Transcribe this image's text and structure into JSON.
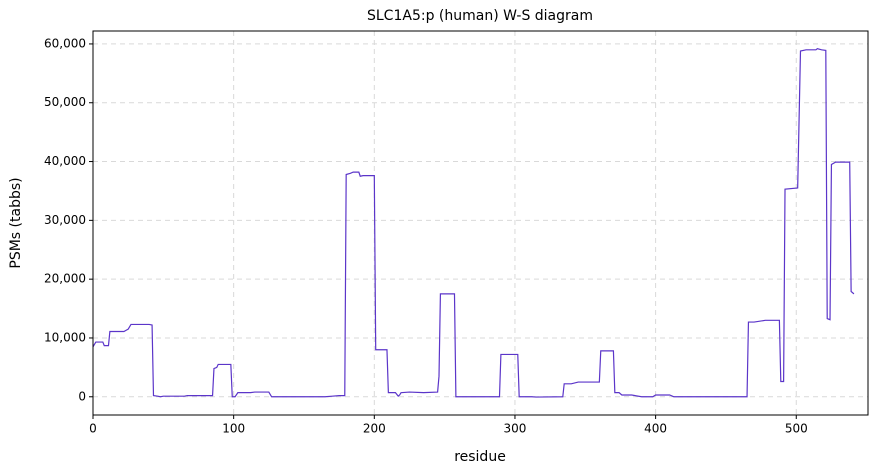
{
  "chart_data": {
    "type": "line",
    "title": "SLC1A5:p (human) W-S diagram",
    "x_label": "residue",
    "y_label": "PSMs (tabbs)",
    "x": [
      0,
      2,
      7,
      8,
      11,
      12,
      22,
      25,
      27,
      40,
      42,
      43,
      46,
      48,
      50,
      65,
      67,
      85,
      86,
      88,
      89,
      98,
      99,
      101,
      103,
      112,
      115,
      125,
      127,
      165,
      170,
      175,
      179,
      180,
      183,
      185,
      189,
      190,
      192,
      200,
      201,
      209,
      210,
      215,
      217,
      218,
      219,
      225,
      235,
      245,
      246,
      247,
      257,
      258,
      289,
      290,
      302,
      303,
      312,
      315,
      334,
      335,
      340,
      345,
      360,
      361,
      370,
      371,
      374,
      376,
      383,
      390,
      398,
      400,
      410,
      413,
      465,
      466,
      470,
      478,
      488,
      489,
      491,
      492,
      501,
      503,
      507,
      514,
      515,
      518,
      521,
      522,
      524,
      525,
      528,
      538,
      539,
      541
    ],
    "series": [
      {
        "name": "SLC1A5:p (human)",
        "color": "#5b35c9",
        "values": [
          8500,
          9300,
          9300,
          8700,
          8700,
          11100,
          11100,
          11500,
          12300,
          12300,
          12200,
          200,
          100,
          0,
          100,
          100,
          200,
          200,
          4800,
          5000,
          5500,
          5500,
          0,
          0,
          700,
          700,
          800,
          800,
          0,
          0,
          100,
          200,
          200,
          37800,
          38000,
          38200,
          38200,
          37500,
          37600,
          37600,
          8000,
          8000,
          700,
          700,
          100,
          300,
          700,
          800,
          700,
          800,
          3500,
          17500,
          17500,
          0,
          0,
          7200,
          7200,
          0,
          0,
          -50,
          0,
          2200,
          2200,
          2500,
          2500,
          7800,
          7800,
          700,
          700,
          300,
          300,
          0,
          0,
          300,
          300,
          0,
          0,
          12700,
          12700,
          13000,
          13000,
          2600,
          2600,
          35300,
          35500,
          58800,
          59000,
          59000,
          59200,
          59000,
          58900,
          13300,
          13100,
          39500,
          39900,
          39900,
          17900,
          17500
        ]
      }
    ],
    "xlim": [
      0,
      551
    ],
    "ylim": [
      -3100,
      62200
    ],
    "xticks": [
      0,
      100,
      200,
      300,
      400,
      500
    ],
    "yticks": [
      0,
      {
        "value": 10000,
        "label": "10,000"
      },
      {
        "value": 20000,
        "label": "20,000"
      },
      {
        "value": 30000,
        "label": "30,000"
      },
      {
        "value": 40000,
        "label": "40,000"
      },
      {
        "value": 50000,
        "label": "50,000"
      },
      {
        "value": 60000,
        "label": "60,000"
      }
    ],
    "grid": true
  }
}
